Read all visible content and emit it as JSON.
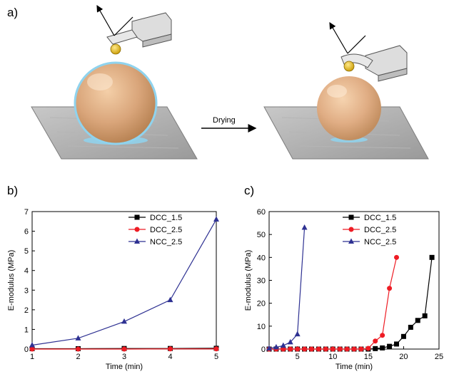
{
  "panel_labels": {
    "a": "a)",
    "b": "b)",
    "c": "c)"
  },
  "illustration": {
    "arrow_label": "Drying"
  },
  "chart_data": [
    {
      "type": "line",
      "xlabel": "Time (min)",
      "ylabel": "E-modulus (MPa)",
      "xlim": [
        1,
        5
      ],
      "ylim": [
        0,
        7
      ],
      "xticks": [
        1,
        2,
        3,
        4,
        5
      ],
      "yticks": [
        0,
        1,
        2,
        3,
        4,
        5,
        6,
        7
      ],
      "legend_position": "top-right",
      "series": [
        {
          "name": "DCC_1.5",
          "color": "#000000",
          "marker": "square",
          "x": [
            1,
            2,
            3,
            4,
            5
          ],
          "y": [
            0.02,
            0.02,
            0.03,
            0.03,
            0.04
          ]
        },
        {
          "name": "DCC_2.5",
          "color": "#ee1c24",
          "marker": "circle",
          "x": [
            1,
            2,
            3,
            4,
            5
          ],
          "y": [
            0.0,
            0.0,
            0.0,
            0.01,
            0.01
          ]
        },
        {
          "name": "NCC_2.5",
          "color": "#2e3192",
          "marker": "triangle",
          "x": [
            1,
            2,
            3,
            4,
            5
          ],
          "y": [
            0.2,
            0.55,
            1.4,
            2.5,
            6.6
          ]
        }
      ]
    },
    {
      "type": "line",
      "xlabel": "Time (min)",
      "ylabel": "E-modulus (MPa)",
      "xlim": [
        1,
        25
      ],
      "ylim": [
        0,
        60
      ],
      "xticks": [
        5,
        10,
        15,
        20,
        25
      ],
      "xtick_labels": [
        "5",
        "10",
        "15",
        "20",
        "25"
      ],
      "yticks": [
        0,
        10,
        20,
        30,
        40,
        50,
        60
      ],
      "legend_position": "top-left",
      "series": [
        {
          "name": "DCC_1.5",
          "color": "#000000",
          "marker": "square",
          "x": [
            1,
            2,
            3,
            4,
            5,
            6,
            7,
            8,
            9,
            10,
            11,
            12,
            13,
            14,
            15,
            16,
            17,
            18,
            19,
            20,
            21,
            22,
            23,
            24
          ],
          "y": [
            0,
            0,
            0,
            0,
            0,
            0,
            0,
            0,
            0,
            0,
            0,
            0,
            0,
            0,
            0,
            0.2,
            0.5,
            1.2,
            2.2,
            5.5,
            9.5,
            12.5,
            14.5,
            40
          ]
        },
        {
          "name": "DCC_2.5",
          "color": "#ee1c24",
          "marker": "circle",
          "x": [
            1,
            2,
            3,
            4,
            5,
            6,
            7,
            8,
            9,
            10,
            11,
            12,
            13,
            14,
            15,
            16,
            17,
            18,
            19
          ],
          "y": [
            0,
            0,
            0,
            0,
            0,
            0,
            0,
            0,
            0,
            0,
            0,
            0,
            0,
            0,
            0.3,
            3.5,
            6,
            26.5,
            40
          ]
        },
        {
          "name": "NCC_2.5",
          "color": "#2e3192",
          "marker": "triangle",
          "x": [
            1,
            2,
            3,
            4,
            5,
            6
          ],
          "y": [
            0.3,
            0.8,
            1.5,
            3,
            6.5,
            53
          ]
        }
      ]
    }
  ]
}
